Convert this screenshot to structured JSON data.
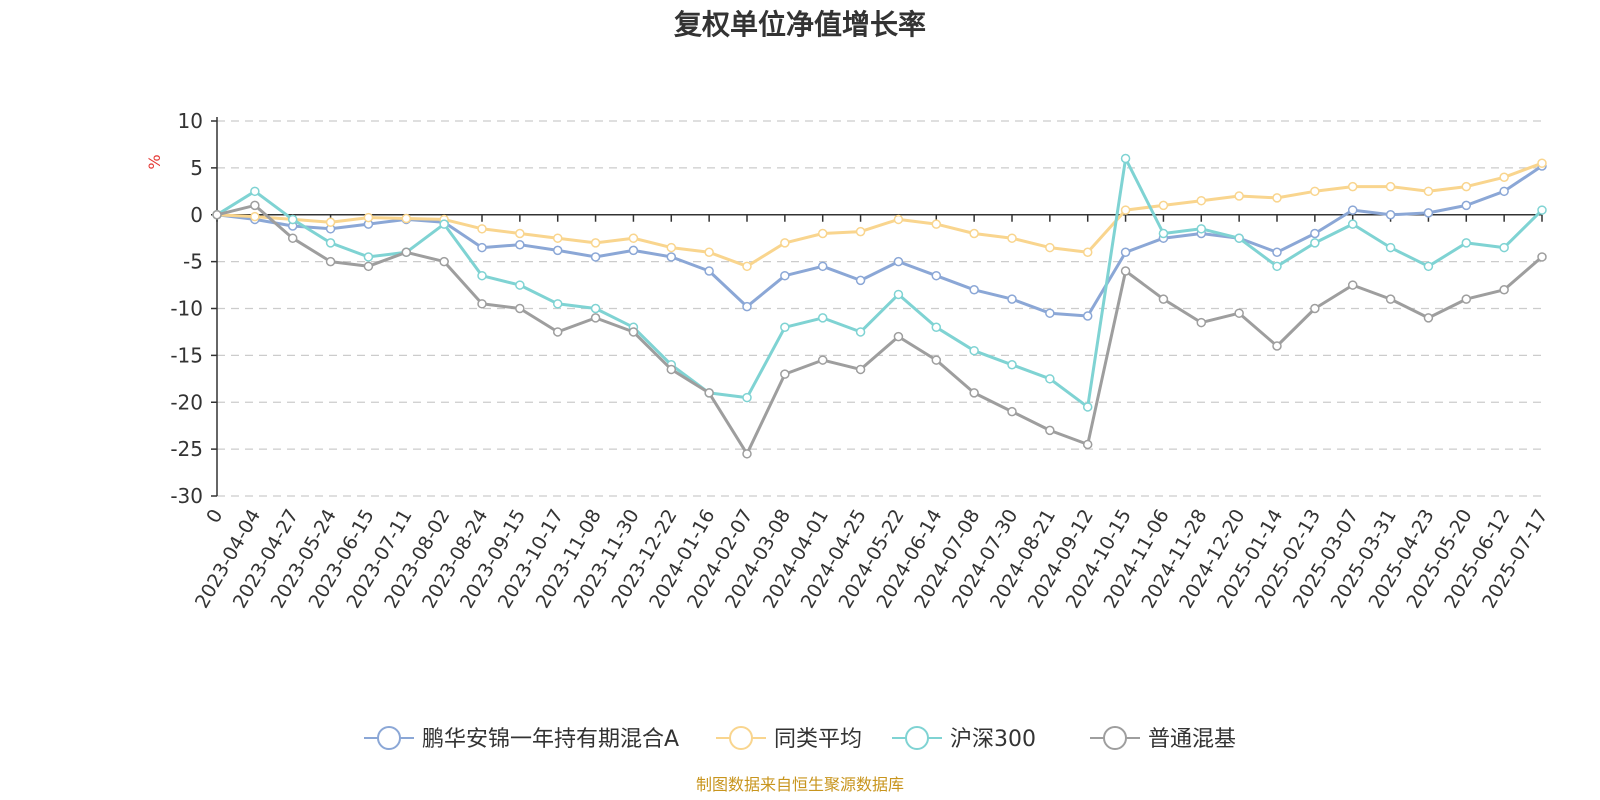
{
  "chart_data": {
    "type": "line",
    "title": "复权单位净值增长率",
    "ylabel": "%",
    "ylim": [
      -30,
      10
    ],
    "yticks": [
      "10",
      "5",
      "0",
      "-5",
      "-10",
      "-15",
      "-20",
      "-25",
      "-30"
    ],
    "x_tick_labels": [
      "0",
      "2023-04-04",
      "2023-04-27",
      "2023-05-24",
      "2023-06-15",
      "2023-07-11",
      "2023-08-02",
      "2023-08-24",
      "2023-09-15",
      "2023-10-17",
      "2023-11-08",
      "2023-11-30",
      "2023-12-22",
      "2024-01-16",
      "2024-02-07",
      "2024-03-08",
      "2024-04-01",
      "2024-04-25",
      "2024-05-22",
      "2024-06-14",
      "2024-07-08",
      "2024-07-30",
      "2024-08-21",
      "2024-09-12",
      "2024-10-15",
      "2024-11-06",
      "2024-11-28",
      "2024-12-20",
      "2025-01-14",
      "2025-02-13",
      "2025-03-07",
      "2025-03-31",
      "2025-04-23",
      "2025-05-20",
      "2025-06-12",
      "2025-07-17"
    ],
    "grid": true,
    "legend_position": "bottom",
    "series": [
      {
        "name": "鹏华安锦一年持有期混合A",
        "color": "#8ba7d6",
        "values": [
          0,
          -0.5,
          -1.2,
          -1.5,
          -1.0,
          -0.5,
          -0.8,
          -3.5,
          -3.2,
          -3.8,
          -4.5,
          -3.8,
          -4.5,
          -6.0,
          -9.8,
          -6.5,
          -5.5,
          -7.0,
          -5.0,
          -6.5,
          -8.0,
          -9.0,
          -10.5,
          -10.8,
          -4.0,
          -2.5,
          -2.0,
          -2.5,
          -4.0,
          -2.0,
          0.5,
          0.0,
          0.2,
          1.0,
          2.5,
          5.2
        ]
      },
      {
        "name": "同类平均",
        "color": "#f9d58e",
        "values": [
          0,
          -0.2,
          -0.5,
          -0.8,
          -0.3,
          -0.4,
          -0.5,
          -1.5,
          -2.0,
          -2.5,
          -3.0,
          -2.5,
          -3.5,
          -4.0,
          -5.5,
          -3.0,
          -2.0,
          -1.8,
          -0.5,
          -1.0,
          -2.0,
          -2.5,
          -3.5,
          -4.0,
          0.5,
          1.0,
          1.5,
          2.0,
          1.8,
          2.5,
          3.0,
          3.0,
          2.5,
          3.0,
          4.0,
          5.5
        ]
      },
      {
        "name": "沪深300",
        "color": "#7fd3d3",
        "values": [
          0,
          2.5,
          -0.5,
          -3.0,
          -4.5,
          -4.0,
          -1.0,
          -6.5,
          -7.5,
          -9.5,
          -10.0,
          -12.0,
          -16.0,
          -19.0,
          -19.5,
          -12.0,
          -11.0,
          -12.5,
          -8.5,
          -12.0,
          -14.5,
          -16.0,
          -17.5,
          -20.5,
          6.0,
          -2.0,
          -1.5,
          -2.5,
          -5.5,
          -3.0,
          -1.0,
          -3.5,
          -5.5,
          -3.0,
          -3.5,
          0.5
        ]
      },
      {
        "name": "普通混基",
        "color": "#9e9e9e",
        "values": [
          0,
          1.0,
          -2.5,
          -5.0,
          -5.5,
          -4.0,
          -5.0,
          -9.5,
          -10.0,
          -12.5,
          -11.0,
          -12.5,
          -16.5,
          -19.0,
          -25.5,
          -17.0,
          -15.5,
          -16.5,
          -13.0,
          -15.5,
          -19.0,
          -21.0,
          -23.0,
          -24.5,
          -6.0,
          -9.0,
          -11.5,
          -10.5,
          -14.0,
          -10.0,
          -7.5,
          -9.0,
          -11.0,
          -9.0,
          -8.0,
          -4.5
        ]
      }
    ]
  },
  "footer": {
    "source": "制图数据来自恒生聚源数据库"
  }
}
